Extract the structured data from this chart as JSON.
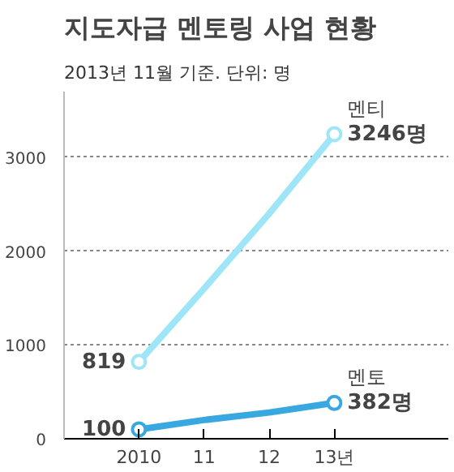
{
  "chart_data": {
    "type": "line",
    "title": "지도자급 멘토링 사업 현황",
    "subtitle": "2013년 11월 기준. 단위: 명",
    "categories": [
      "2010",
      "11",
      "12",
      "13년"
    ],
    "series": [
      {
        "name": "멘티",
        "color": "#9ee6f7",
        "values": [
          819,
          1600,
          2400,
          3246
        ],
        "value_labels": [
          "819",
          null,
          null,
          "3246명"
        ]
      },
      {
        "name": "멘토",
        "color": "#3aa8e0",
        "values": [
          100,
          200,
          280,
          382
        ],
        "value_labels": [
          "100",
          null,
          null,
          "382명"
        ]
      }
    ],
    "ylim": [
      0,
      3700
    ],
    "yticks": [
      0,
      1000,
      2000,
      3000
    ],
    "grid": "y",
    "marker": "circle",
    "line_style": "solid",
    "legend": false
  }
}
